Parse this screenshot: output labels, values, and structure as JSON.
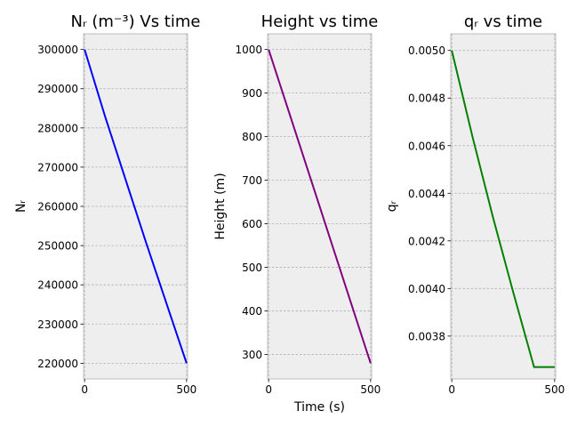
{
  "chart_data": [
    {
      "type": "line",
      "title": "Nᵣ (m⁻³) Vs time",
      "xlabel": "",
      "ylabel": "Nᵣ",
      "xlim": [
        -5,
        505
      ],
      "ylim": [
        216000,
        304000
      ],
      "xticks": [
        0,
        500
      ],
      "yticks": [
        220000,
        230000,
        240000,
        250000,
        260000,
        270000,
        280000,
        290000,
        300000
      ],
      "grid": true,
      "series": [
        {
          "color": "#0000ff",
          "x": [
            0,
            100,
            200,
            300,
            400,
            500
          ],
          "y": [
            300000,
            283000,
            267000,
            251000,
            235500,
            220000
          ]
        }
      ]
    },
    {
      "type": "line",
      "title": "Height vs time",
      "xlabel": "Time (s)",
      "ylabel": "Height (m)",
      "xlim": [
        -5,
        505
      ],
      "ylim": [
        244,
        1036
      ],
      "xticks": [
        0,
        500
      ],
      "yticks": [
        300,
        400,
        500,
        600,
        700,
        800,
        900,
        1000
      ],
      "grid": true,
      "series": [
        {
          "color": "#800080",
          "x": [
            0,
            100,
            200,
            300,
            400,
            500
          ],
          "y": [
            1000,
            856,
            712,
            568,
            424,
            280
          ]
        }
      ]
    },
    {
      "type": "line",
      "title": "qᵣ vs time",
      "xlabel": "",
      "ylabel": "qᵣ",
      "xlim": [
        -5,
        505
      ],
      "ylim": [
        0.00362,
        0.00507
      ],
      "xticks": [
        0,
        500
      ],
      "yticks": [
        0.0038,
        0.004,
        0.0042,
        0.0044,
        0.0046,
        0.0048,
        0.005
      ],
      "ytick_labels": [
        "0.0038",
        "0.0040",
        "0.0042",
        "0.0044",
        "0.0046",
        "0.0048",
        "0.0050"
      ],
      "grid": true,
      "series": [
        {
          "color": "#008000",
          "x": [
            0,
            100,
            200,
            300,
            400,
            500
          ],
          "y": [
            0.005,
            0.00464,
            0.0043,
            0.00398,
            0.00367,
            0.00367
          ]
        }
      ]
    }
  ]
}
